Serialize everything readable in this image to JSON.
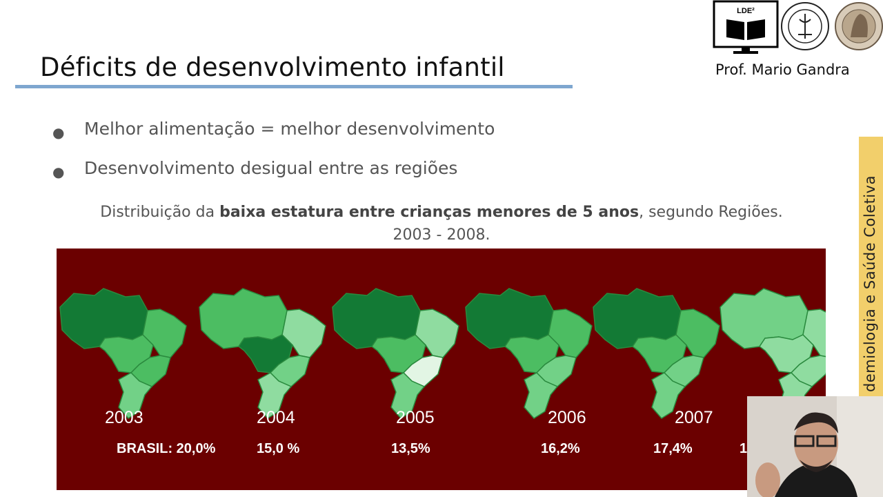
{
  "header": {
    "title": "Déficits de desenvolvimento infantil",
    "author": "Prof. Mario Gandra",
    "logo_text": "LDE²"
  },
  "bullets": [
    "Melhor alimentação = melhor desenvolvimento",
    "Desenvolvimento desigual entre as regiões"
  ],
  "caption": {
    "prefix": "Distribuição da ",
    "bold": "baixa estatura entre crianças menores de 5 anos",
    "suffix": ", segundo Regiões.",
    "line2": "2003 - 2008."
  },
  "maps": [
    {
      "year": "2003",
      "label": "BRASIL: 20,0%"
    },
    {
      "year": "2004",
      "label": "15,0 %"
    },
    {
      "year": "2005",
      "label": "13,5%"
    },
    {
      "year": "2006",
      "label": "16,2%"
    },
    {
      "year": "2007",
      "label": "17,4%"
    },
    {
      "year": "",
      "label": "1"
    }
  ],
  "colors": {
    "panel": "#6b0000",
    "accent_rule": "#7ea6cf",
    "banner": "#f2cf6b"
  },
  "side_banner": "demiologia e Saúde  Coletiva"
}
